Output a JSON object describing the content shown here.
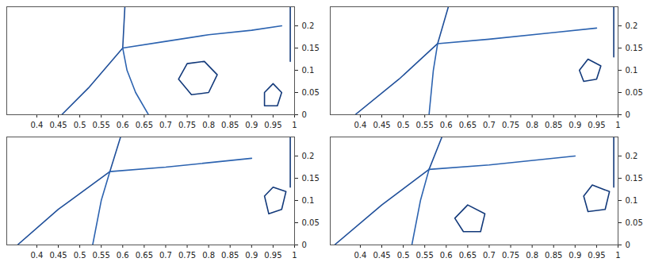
{
  "chart_data": [
    {
      "type": "line",
      "xlim": [
        0.33,
        1
      ],
      "ylim": [
        0,
        0.243
      ],
      "xticks": [
        0.4,
        0.45,
        0.5,
        0.55,
        0.6,
        0.65,
        0.7,
        0.75,
        0.8,
        0.85,
        0.9,
        0.95,
        1
      ],
      "yticks": [
        0,
        0.05,
        0.1,
        0.15,
        0.2
      ],
      "series": [
        {
          "color": "#1f4f9a",
          "x": [
            0.458,
            0.52,
            0.6
          ],
          "values": [
            0.0,
            0.06,
            0.15
          ]
        },
        {
          "color": "#1f4f9a",
          "x": [
            0.605,
            0.6
          ],
          "values": [
            0.243,
            0.15
          ]
        },
        {
          "color": "#2c63b0",
          "x": [
            0.6,
            0.7,
            0.8,
            0.9,
            0.97
          ],
          "values": [
            0.15,
            0.165,
            0.18,
            0.19,
            0.2
          ]
        },
        {
          "color": "#2c63b0",
          "x": [
            0.6,
            0.61,
            0.63,
            0.66
          ],
          "values": [
            0.15,
            0.1,
            0.05,
            0.0
          ]
        },
        {
          "color": "#12397a",
          "x": [
            0.99,
            0.99
          ],
          "values": [
            0.243,
            0.12
          ]
        },
        {
          "color": "#12397a",
          "x": [
            0.73,
            0.75,
            0.79,
            0.82,
            0.8,
            0.76,
            0.73
          ],
          "values": [
            0.08,
            0.115,
            0.12,
            0.09,
            0.05,
            0.045,
            0.08
          ]
        },
        {
          "color": "#12397a",
          "x": [
            0.93,
            0.95,
            0.97,
            0.96,
            0.93,
            0.93
          ],
          "values": [
            0.05,
            0.07,
            0.05,
            0.02,
            0.02,
            0.05
          ]
        }
      ]
    },
    {
      "type": "line",
      "xlim": [
        0.33,
        1
      ],
      "ylim": [
        0,
        0.243
      ],
      "xticks": [
        0.4,
        0.45,
        0.5,
        0.55,
        0.6,
        0.65,
        0.7,
        0.75,
        0.8,
        0.85,
        0.9,
        0.95,
        1
      ],
      "yticks": [
        0,
        0.05,
        0.1,
        0.15,
        0.2
      ],
      "series": [
        {
          "color": "#1f4f9a",
          "x": [
            0.388,
            0.49,
            0.58
          ],
          "values": [
            0.0,
            0.08,
            0.16
          ]
        },
        {
          "color": "#1f4f9a",
          "x": [
            0.605,
            0.58
          ],
          "values": [
            0.243,
            0.16
          ]
        },
        {
          "color": "#2c63b0",
          "x": [
            0.58,
            0.7,
            0.85,
            0.95
          ],
          "values": [
            0.16,
            0.17,
            0.185,
            0.195
          ]
        },
        {
          "color": "#2c63b0",
          "x": [
            0.58,
            0.57,
            0.56
          ],
          "values": [
            0.16,
            0.1,
            0.0
          ]
        },
        {
          "color": "#12397a",
          "x": [
            0.99,
            0.99
          ],
          "values": [
            0.243,
            0.13
          ]
        },
        {
          "color": "#12397a",
          "x": [
            0.91,
            0.93,
            0.96,
            0.95,
            0.92,
            0.91
          ],
          "values": [
            0.1,
            0.125,
            0.11,
            0.08,
            0.075,
            0.1
          ]
        }
      ]
    },
    {
      "type": "line",
      "xlim": [
        0.33,
        1
      ],
      "ylim": [
        0,
        0.243
      ],
      "xticks": [
        0.4,
        0.45,
        0.5,
        0.55,
        0.6,
        0.65,
        0.7,
        0.75,
        0.8,
        0.85,
        0.9,
        0.95,
        1
      ],
      "yticks": [
        0,
        0.05,
        0.1,
        0.15,
        0.2
      ],
      "series": [
        {
          "color": "#1f4f9a",
          "x": [
            0.355,
            0.45,
            0.57
          ],
          "values": [
            0.0,
            0.08,
            0.165
          ]
        },
        {
          "color": "#1f4f9a",
          "x": [
            0.595,
            0.57
          ],
          "values": [
            0.243,
            0.165
          ]
        },
        {
          "color": "#2c63b0",
          "x": [
            0.57,
            0.7,
            0.9
          ],
          "values": [
            0.165,
            0.175,
            0.195
          ]
        },
        {
          "color": "#2c63b0",
          "x": [
            0.57,
            0.55,
            0.53
          ],
          "values": [
            0.165,
            0.1,
            0.0
          ]
        },
        {
          "color": "#12397a",
          "x": [
            0.99,
            0.99
          ],
          "values": [
            0.243,
            0.13
          ]
        },
        {
          "color": "#12397a",
          "x": [
            0.93,
            0.95,
            0.98,
            0.97,
            0.94,
            0.93
          ],
          "values": [
            0.11,
            0.13,
            0.12,
            0.08,
            0.07,
            0.11
          ]
        }
      ]
    },
    {
      "type": "line",
      "xlim": [
        0.33,
        1
      ],
      "ylim": [
        0,
        0.243
      ],
      "xticks": [
        0.4,
        0.45,
        0.5,
        0.55,
        0.6,
        0.65,
        0.7,
        0.75,
        0.8,
        0.85,
        0.9,
        0.95,
        1
      ],
      "yticks": [
        0,
        0.05,
        0.1,
        0.15,
        0.2
      ],
      "series": [
        {
          "color": "#1f4f9a",
          "x": [
            0.34,
            0.45,
            0.56
          ],
          "values": [
            0.0,
            0.09,
            0.17
          ]
        },
        {
          "color": "#1f4f9a",
          "x": [
            0.59,
            0.56
          ],
          "values": [
            0.243,
            0.17
          ]
        },
        {
          "color": "#2c63b0",
          "x": [
            0.56,
            0.7,
            0.9
          ],
          "values": [
            0.17,
            0.18,
            0.2
          ]
        },
        {
          "color": "#2c63b0",
          "x": [
            0.56,
            0.54,
            0.52
          ],
          "values": [
            0.17,
            0.1,
            0.0
          ]
        },
        {
          "color": "#12397a",
          "x": [
            0.99,
            0.99
          ],
          "values": [
            0.243,
            0.13
          ]
        },
        {
          "color": "#12397a",
          "x": [
            0.92,
            0.94,
            0.98,
            0.97,
            0.93,
            0.92
          ],
          "values": [
            0.11,
            0.135,
            0.12,
            0.08,
            0.075,
            0.11
          ]
        },
        {
          "color": "#12397a",
          "x": [
            0.62,
            0.65,
            0.69,
            0.68,
            0.64,
            0.62
          ],
          "values": [
            0.06,
            0.09,
            0.07,
            0.03,
            0.03,
            0.06
          ]
        }
      ]
    }
  ]
}
